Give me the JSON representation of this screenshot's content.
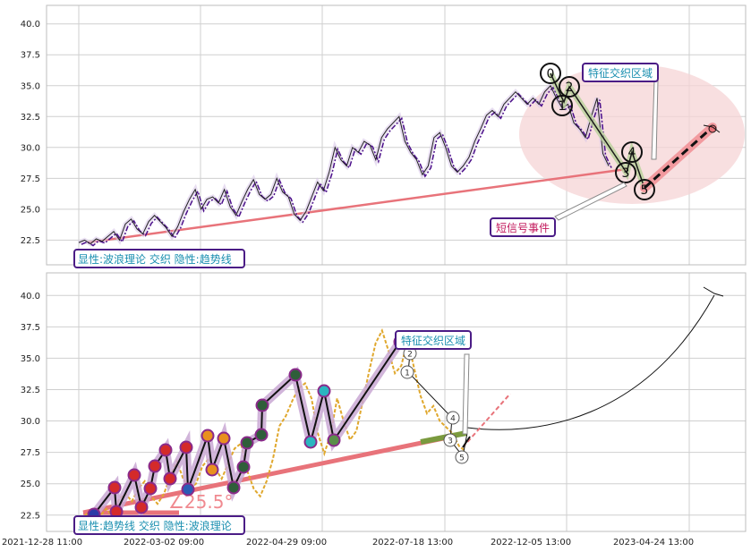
{
  "chart_data": [
    {
      "type": "line",
      "panel": "top",
      "ylim": [
        20.5,
        41.5
      ],
      "y_ticks": [
        "22.5",
        "25.0",
        "27.5",
        "30.0",
        "32.5",
        "35.0",
        "37.5",
        "40.0"
      ],
      "grid": true,
      "series": [
        {
          "values": [
            [
              0,
              22.3
            ],
            [
              2,
              22.5
            ],
            [
              4,
              22.2
            ],
            [
              6,
              22.6
            ],
            [
              8,
              22.4
            ],
            [
              10,
              22.8
            ],
            [
              12,
              23.2
            ],
            [
              14,
              22.5
            ],
            [
              16,
              23.8
            ],
            [
              18,
              24.2
            ],
            [
              20,
              23.4
            ],
            [
              22,
              23.0
            ],
            [
              24,
              24.0
            ],
            [
              26,
              24.5
            ],
            [
              28,
              24.0
            ],
            [
              30,
              23.5
            ],
            [
              32,
              22.8
            ],
            [
              34,
              23.6
            ],
            [
              36,
              24.8
            ],
            [
              38,
              25.8
            ],
            [
              40,
              26.6
            ],
            [
              42,
              25.0
            ],
            [
              44,
              25.8
            ],
            [
              46,
              26.0
            ],
            [
              48,
              25.5
            ],
            [
              50,
              26.6
            ],
            [
              52,
              25.2
            ],
            [
              54,
              24.5
            ],
            [
              56,
              25.6
            ],
            [
              58,
              26.6
            ],
            [
              60,
              27.4
            ],
            [
              62,
              26.2
            ],
            [
              64,
              25.8
            ],
            [
              66,
              26.2
            ],
            [
              68,
              27.5
            ],
            [
              70,
              26.4
            ],
            [
              72,
              26.0
            ],
            [
              74,
              24.6
            ],
            [
              76,
              24.1
            ],
            [
              78,
              24.8
            ],
            [
              80,
              26.0
            ],
            [
              82,
              27.2
            ],
            [
              84,
              26.5
            ],
            [
              86,
              28.0
            ],
            [
              88,
              30.0
            ],
            [
              90,
              29.0
            ],
            [
              92,
              28.5
            ],
            [
              94,
              30.0
            ],
            [
              96,
              29.6
            ],
            [
              98,
              30.5
            ],
            [
              100,
              30.2
            ],
            [
              102,
              29.0
            ],
            [
              104,
              30.8
            ],
            [
              106,
              31.5
            ],
            [
              108,
              32.0
            ],
            [
              110,
              32.5
            ],
            [
              112,
              30.5
            ],
            [
              114,
              29.6
            ],
            [
              116,
              29.0
            ],
            [
              118,
              27.8
            ],
            [
              120,
              28.5
            ],
            [
              122,
              30.8
            ],
            [
              124,
              31.2
            ],
            [
              126,
              30.0
            ],
            [
              128,
              28.5
            ],
            [
              130,
              28.0
            ],
            [
              132,
              28.5
            ],
            [
              134,
              29.2
            ],
            [
              136,
              30.5
            ],
            [
              138,
              31.5
            ],
            [
              140,
              32.6
            ],
            [
              142,
              33.0
            ],
            [
              144,
              32.5
            ],
            [
              146,
              33.5
            ],
            [
              148,
              34.0
            ],
            [
              150,
              34.5
            ],
            [
              152,
              34.0
            ],
            [
              154,
              33.5
            ],
            [
              156,
              34.0
            ],
            [
              158,
              33.5
            ],
            [
              160,
              34.5
            ],
            [
              162,
              35.0
            ],
            [
              164,
              34.0
            ],
            [
              166,
              33.2
            ],
            [
              168,
              33.5
            ],
            [
              170,
              32.0
            ],
            [
              172,
              31.5
            ],
            [
              174,
              30.8
            ],
            [
              176,
              32.5
            ],
            [
              178,
              34.0
            ],
            [
              180,
              29.5
            ],
            [
              182,
              28.5
            ]
          ],
          "color": "#4b0f8a"
        }
      ],
      "wave_labels": [
        "0",
        "1",
        "2",
        "3",
        "4",
        "5"
      ],
      "annotations": [
        "特征交织区域",
        "短信号事件",
        "显性:波浪理论 交织 隐性:趋势线"
      ]
    },
    {
      "type": "line",
      "panel": "bottom",
      "ylim": [
        21.2,
        41.8
      ],
      "y_ticks": [
        "22.5",
        "25.0",
        "27.5",
        "30.0",
        "32.5",
        "35.0",
        "37.5",
        "40.0"
      ],
      "x_ticks": [
        "2021-12-28 11:00",
        "2022-03-02 09:00",
        "2022-04-29 09:00",
        "2022-07-18 13:00",
        "2022-12-05 13:00",
        "2023-04-24 13:00"
      ],
      "grid": true,
      "series": [
        {
          "values": [
            [
              0,
              22.2
            ],
            [
              2,
              22.6
            ],
            [
              4,
              21.8
            ],
            [
              6,
              22.4
            ],
            [
              8,
              23.0
            ],
            [
              10,
              22.4
            ],
            [
              12,
              23.8
            ],
            [
              14,
              24.2
            ],
            [
              16,
              23.6
            ],
            [
              18,
              24.6
            ],
            [
              20,
              25.2
            ],
            [
              22,
              24.0
            ],
            [
              24,
              23.4
            ],
            [
              26,
              24.2
            ],
            [
              28,
              25.6
            ],
            [
              30,
              26.8
            ],
            [
              32,
              25.4
            ],
            [
              34,
              24.6
            ],
            [
              36,
              25.0
            ],
            [
              38,
              26.4
            ],
            [
              40,
              27.0
            ],
            [
              42,
              26.2
            ],
            [
              44,
              25.4
            ],
            [
              46,
              26.6
            ],
            [
              48,
              27.8
            ],
            [
              50,
              28.2
            ],
            [
              52,
              26.0
            ],
            [
              54,
              24.6
            ],
            [
              56,
              24.0
            ],
            [
              58,
              25.2
            ],
            [
              60,
              27.0
            ],
            [
              62,
              29.6
            ],
            [
              64,
              30.4
            ],
            [
              66,
              31.6
            ],
            [
              68,
              32.6
            ],
            [
              70,
              33.0
            ],
            [
              72,
              31.8
            ],
            [
              74,
              29.0
            ],
            [
              76,
              27.4
            ],
            [
              78,
              29.0
            ],
            [
              80,
              31.8
            ],
            [
              82,
              30.0
            ],
            [
              84,
              28.5
            ],
            [
              86,
              29.2
            ],
            [
              88,
              31.6
            ],
            [
              90,
              34.0
            ],
            [
              92,
              36.2
            ],
            [
              94,
              37.2
            ],
            [
              96,
              35.6
            ],
            [
              98,
              33.8
            ],
            [
              100,
              34.4
            ],
            [
              102,
              36.5
            ],
            [
              104,
              34.2
            ],
            [
              106,
              32.0
            ],
            [
              108,
              30.6
            ],
            [
              110,
              31.2
            ],
            [
              112,
              30.0
            ],
            [
              114,
              29.5
            ],
            [
              116,
              29.0
            ],
            [
              118,
              28.0
            ],
            [
              120,
              27.6
            ]
          ],
          "color": "#e0a82e"
        }
      ],
      "wave_labels": [
        "1",
        "2",
        "3",
        "4",
        "5"
      ],
      "annotations": [
        "特征交织区域",
        "∠25.5°",
        "显性:趋势线 交织 隐性:波浪理论"
      ]
    }
  ],
  "top_panel": {
    "annotation_feature": "特征交织区域",
    "annotation_short_signal": "短信号事件",
    "footer_label": "显性:波浪理论 交织 隐性:趋势线",
    "wave_labels": [
      "0",
      "1",
      "2",
      "3",
      "4",
      "5"
    ]
  },
  "bottom_panel": {
    "annotation_feature": "特征交织区域",
    "angle_label": "∠25.5°",
    "footer_label": "显性:趋势线 交织 隐性:波浪理论",
    "wave_labels": [
      "1",
      "2",
      "3",
      "4",
      "5"
    ]
  },
  "colors": {
    "top_series": "#4b0f8a",
    "bottom_series": "#e0a82e",
    "trendline": "#e8737a",
    "zigzag": "#1a1a1a",
    "ellipse_fill": "#f6d4d6",
    "box_border": "#4b1c86",
    "annotation_text": "#1a8fb0"
  }
}
